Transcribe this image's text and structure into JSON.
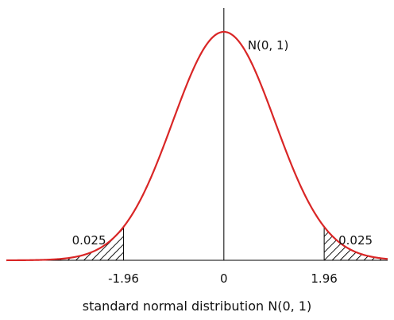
{
  "chart_data": {
    "type": "line",
    "title": "",
    "caption": "standard normal distribution N(0, 1)",
    "xlabel": "",
    "ylabel": "",
    "xlim": [
      -4.25,
      3.2
    ],
    "ylim": [
      0,
      0.4
    ],
    "grid": false,
    "legend": "none",
    "colors": {
      "curve": "#d92626",
      "axis": "#000000",
      "hatch": "#000000"
    },
    "series": [
      {
        "name": "N(0, 1)",
        "function": "standard normal pdf",
        "mean": 0,
        "sd": 1
      }
    ],
    "x_ticks": [
      {
        "value": -1.96,
        "label": "-1.96"
      },
      {
        "value": 0,
        "label": "0"
      },
      {
        "value": 1.96,
        "label": "1.96"
      }
    ],
    "shaded_regions": [
      {
        "from": -4.25,
        "to": -1.96,
        "label": "0.025",
        "fill": "hatch"
      },
      {
        "from": 1.96,
        "to": 3.2,
        "label": "0.025",
        "fill": "hatch"
      }
    ]
  }
}
